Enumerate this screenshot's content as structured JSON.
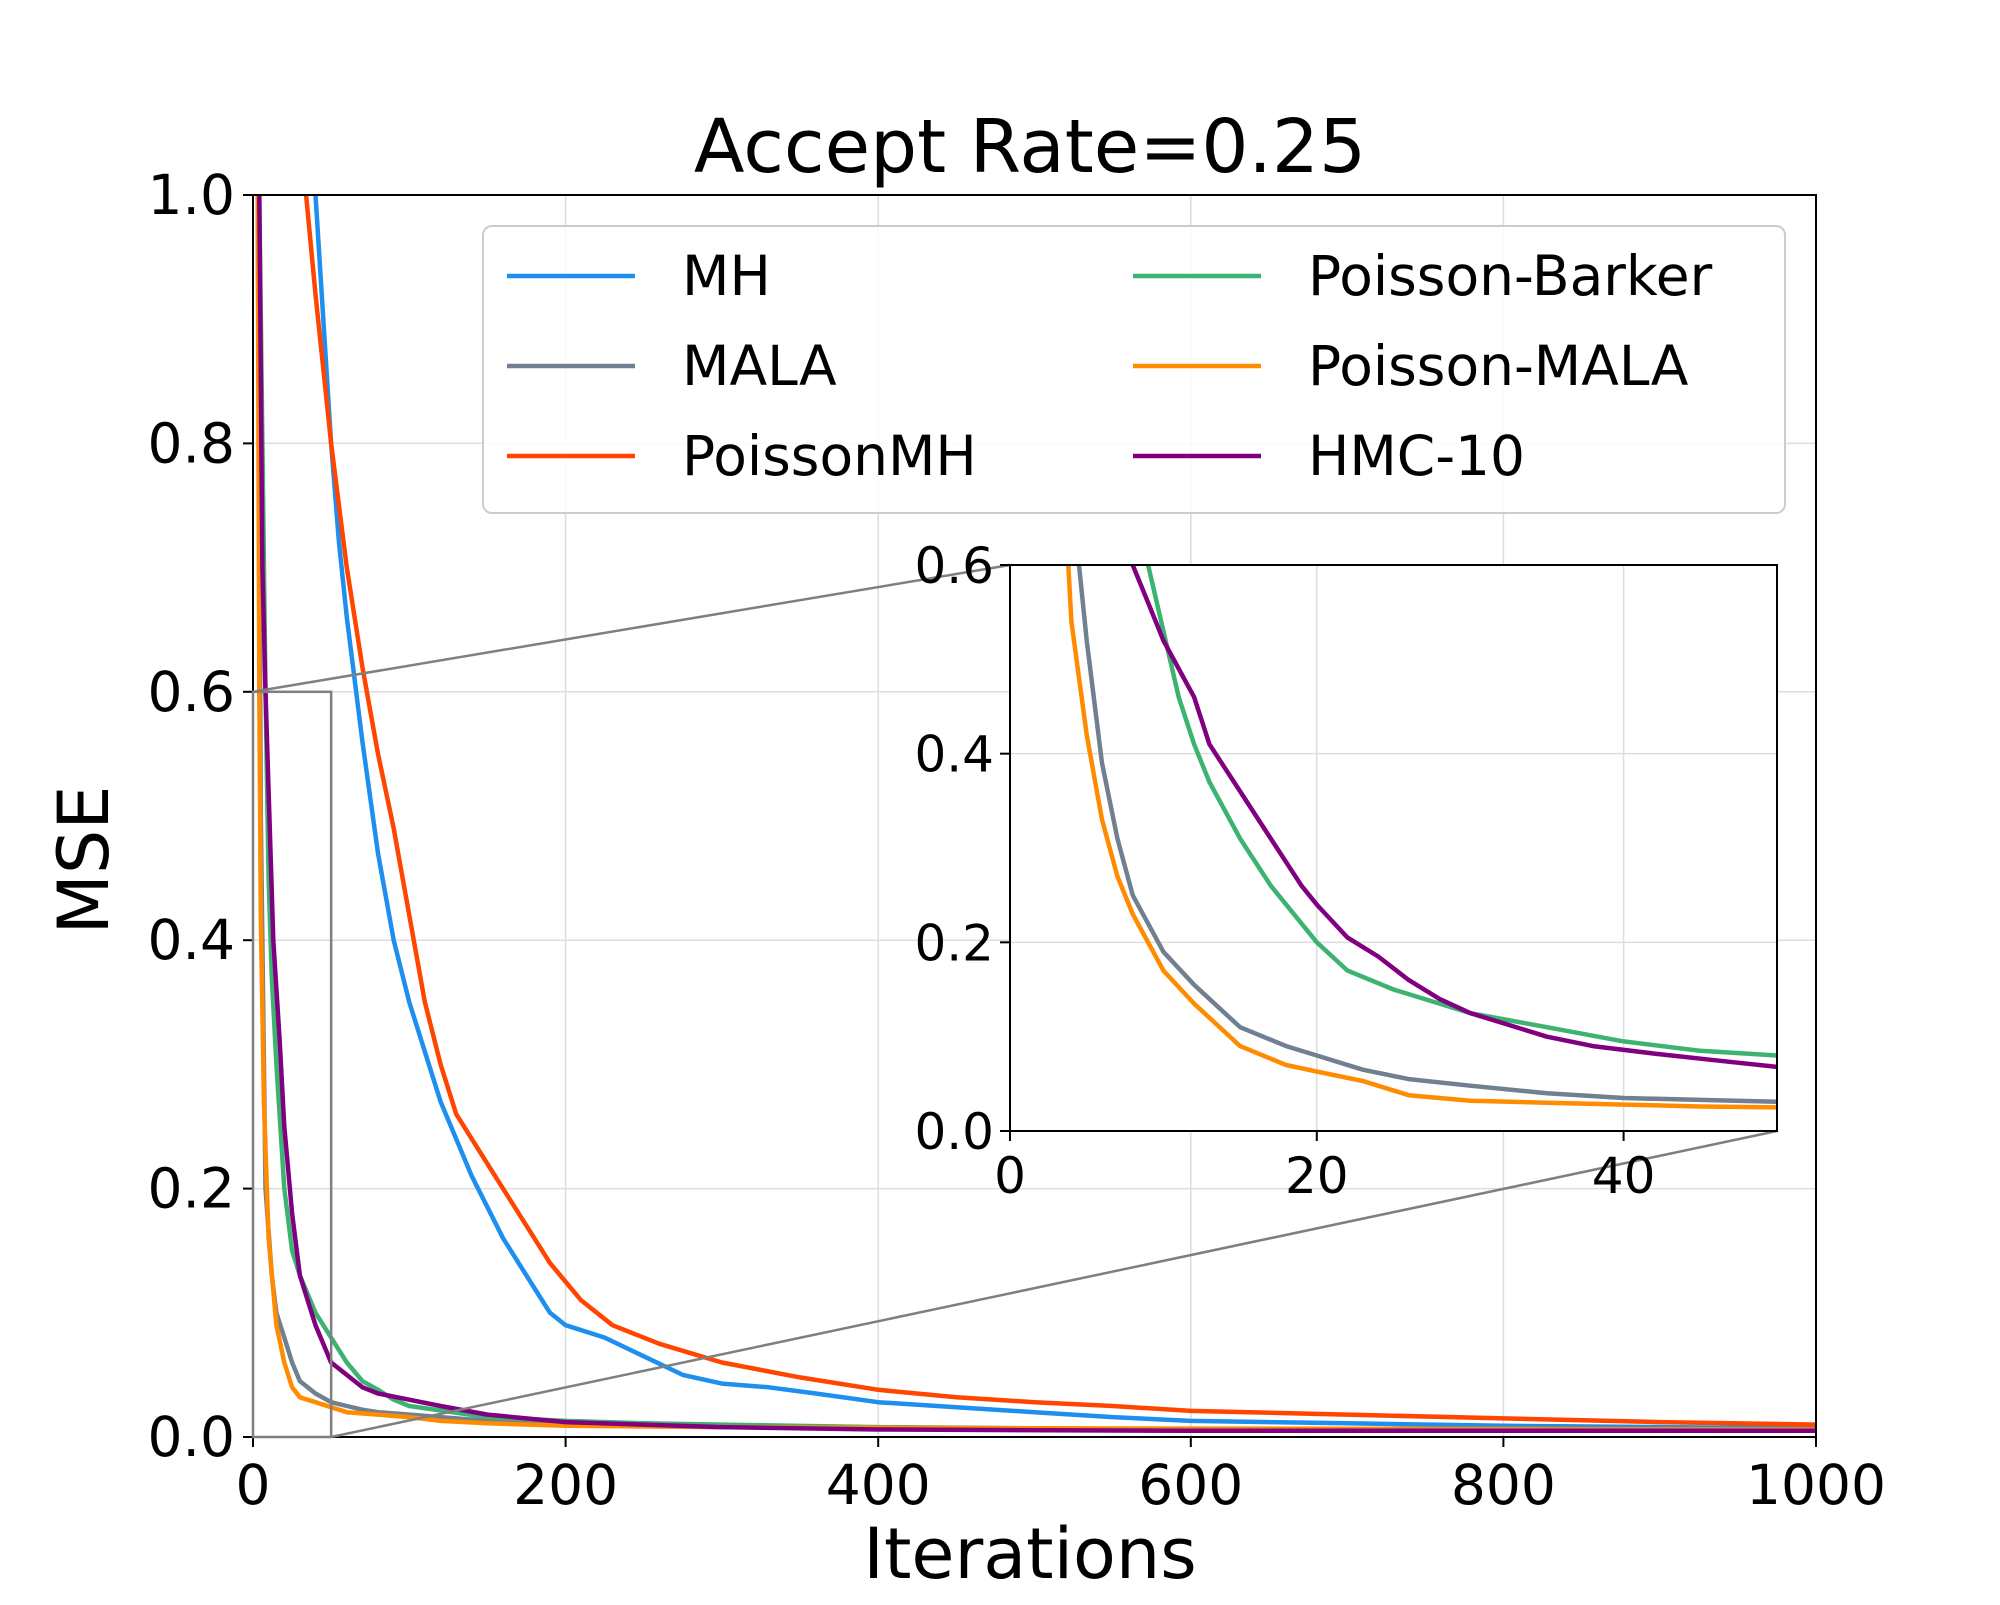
{
  "chart_data": {
    "type": "line",
    "title": "Accept Rate=0.25",
    "xlabel": "Iterations",
    "ylabel": "MSE",
    "xlim": [
      0,
      1000
    ],
    "ylim": [
      0,
      1.0
    ],
    "xticks": [
      "0",
      "200",
      "400",
      "600",
      "800",
      "1000"
    ],
    "yticks": [
      "0.0",
      "0.2",
      "0.4",
      "0.6",
      "0.8",
      "1.0"
    ],
    "grid": true,
    "legend": {
      "placement": "top-right",
      "columns": 2
    },
    "series": [
      {
        "name": "MH",
        "color": "#1f8fef",
        "points": [
          [
            40,
            1.0
          ],
          [
            45,
            0.9
          ],
          [
            50,
            0.8
          ],
          [
            55,
            0.72
          ],
          [
            60,
            0.66
          ],
          [
            70,
            0.56
          ],
          [
            80,
            0.47
          ],
          [
            90,
            0.4
          ],
          [
            100,
            0.35
          ],
          [
            120,
            0.27
          ],
          [
            140,
            0.21
          ],
          [
            160,
            0.16
          ],
          [
            180,
            0.12
          ],
          [
            190,
            0.1
          ],
          [
            200,
            0.09
          ],
          [
            225,
            0.08
          ],
          [
            250,
            0.065
          ],
          [
            275,
            0.05
          ],
          [
            300,
            0.043
          ],
          [
            330,
            0.04
          ],
          [
            360,
            0.035
          ],
          [
            400,
            0.028
          ],
          [
            450,
            0.024
          ],
          [
            500,
            0.02
          ],
          [
            550,
            0.016
          ],
          [
            600,
            0.013
          ],
          [
            700,
            0.011
          ],
          [
            800,
            0.009
          ],
          [
            900,
            0.008
          ],
          [
            1000,
            0.007
          ]
        ]
      },
      {
        "name": "MALA",
        "color": "#708090",
        "points": [
          [
            3,
            1.0
          ],
          [
            5,
            0.5
          ],
          [
            8,
            0.2
          ],
          [
            12,
            0.13
          ],
          [
            15,
            0.1
          ],
          [
            20,
            0.08
          ],
          [
            25,
            0.06
          ],
          [
            30,
            0.045
          ],
          [
            40,
            0.035
          ],
          [
            50,
            0.028
          ],
          [
            60,
            0.025
          ],
          [
            70,
            0.022
          ],
          [
            80,
            0.02
          ],
          [
            100,
            0.018
          ],
          [
            150,
            0.013
          ],
          [
            200,
            0.01
          ],
          [
            300,
            0.008
          ],
          [
            400,
            0.007
          ],
          [
            600,
            0.006
          ],
          [
            800,
            0.005
          ],
          [
            1000,
            0.005
          ]
        ]
      },
      {
        "name": "PoissonMH",
        "color": "#ff4500",
        "points": [
          [
            34,
            1.0
          ],
          [
            40,
            0.92
          ],
          [
            50,
            0.8
          ],
          [
            60,
            0.7
          ],
          [
            70,
            0.62
          ],
          [
            80,
            0.55
          ],
          [
            90,
            0.49
          ],
          [
            100,
            0.42
          ],
          [
            110,
            0.35
          ],
          [
            120,
            0.3
          ],
          [
            130,
            0.26
          ],
          [
            150,
            0.22
          ],
          [
            170,
            0.18
          ],
          [
            190,
            0.14
          ],
          [
            210,
            0.11
          ],
          [
            230,
            0.09
          ],
          [
            260,
            0.075
          ],
          [
            300,
            0.06
          ],
          [
            350,
            0.048
          ],
          [
            400,
            0.038
          ],
          [
            450,
            0.032
          ],
          [
            500,
            0.028
          ],
          [
            550,
            0.025
          ],
          [
            600,
            0.021
          ],
          [
            700,
            0.018
          ],
          [
            800,
            0.015
          ],
          [
            900,
            0.012
          ],
          [
            1000,
            0.01
          ]
        ]
      },
      {
        "name": "Poisson-Barker",
        "color": "#3cb371",
        "points": [
          [
            4,
            1.0
          ],
          [
            8,
            0.6
          ],
          [
            10,
            0.45
          ],
          [
            12,
            0.37
          ],
          [
            15,
            0.3
          ],
          [
            20,
            0.2
          ],
          [
            25,
            0.15
          ],
          [
            30,
            0.13
          ],
          [
            40,
            0.1
          ],
          [
            50,
            0.08
          ],
          [
            60,
            0.06
          ],
          [
            70,
            0.045
          ],
          [
            80,
            0.038
          ],
          [
            90,
            0.03
          ],
          [
            100,
            0.025
          ],
          [
            150,
            0.016
          ],
          [
            200,
            0.013
          ],
          [
            250,
            0.011
          ],
          [
            300,
            0.01
          ],
          [
            400,
            0.008
          ],
          [
            600,
            0.006
          ],
          [
            800,
            0.005
          ],
          [
            1000,
            0.005
          ]
        ]
      },
      {
        "name": "Poisson-MALA",
        "color": "#ff8c00",
        "points": [
          [
            3,
            1.0
          ],
          [
            4,
            0.6
          ],
          [
            5,
            0.42
          ],
          [
            7,
            0.27
          ],
          [
            10,
            0.16
          ],
          [
            15,
            0.09
          ],
          [
            20,
            0.06
          ],
          [
            25,
            0.04
          ],
          [
            30,
            0.032
          ],
          [
            40,
            0.028
          ],
          [
            50,
            0.024
          ],
          [
            60,
            0.02
          ],
          [
            80,
            0.018
          ],
          [
            100,
            0.016
          ],
          [
            120,
            0.013
          ],
          [
            150,
            0.011
          ],
          [
            200,
            0.009
          ],
          [
            300,
            0.008
          ],
          [
            500,
            0.007
          ],
          [
            1000,
            0.006
          ]
        ]
      },
      {
        "name": "HMC-10",
        "color": "#800080",
        "points": [
          [
            4,
            1.0
          ],
          [
            6,
            0.7
          ],
          [
            8,
            0.6
          ],
          [
            10,
            0.52
          ],
          [
            13,
            0.4
          ],
          [
            17,
            0.32
          ],
          [
            20,
            0.25
          ],
          [
            25,
            0.18
          ],
          [
            30,
            0.13
          ],
          [
            35,
            0.11
          ],
          [
            40,
            0.09
          ],
          [
            50,
            0.06
          ],
          [
            60,
            0.05
          ],
          [
            70,
            0.04
          ],
          [
            80,
            0.035
          ],
          [
            100,
            0.03
          ],
          [
            120,
            0.025
          ],
          [
            150,
            0.018
          ],
          [
            200,
            0.012
          ],
          [
            300,
            0.008
          ],
          [
            400,
            0.006
          ],
          [
            600,
            0.005
          ],
          [
            800,
            0.005
          ],
          [
            1000,
            0.005
          ]
        ]
      }
    ],
    "inset": {
      "xlim": [
        0,
        50
      ],
      "ylim": [
        0,
        0.6
      ],
      "xticks": [
        "0",
        "20",
        "40"
      ],
      "yticks": [
        "0.0",
        "0.2",
        "0.4",
        "0.6"
      ],
      "zoom_region": {
        "x": [
          0,
          50
        ],
        "y": [
          0,
          0.6
        ]
      },
      "series": [
        {
          "name": "MALA",
          "color": "#708090",
          "points": [
            [
              4.5,
              0.6
            ],
            [
              5,
              0.52
            ],
            [
              6,
              0.39
            ],
            [
              7,
              0.31
            ],
            [
              8,
              0.25
            ],
            [
              10,
              0.19
            ],
            [
              12,
              0.155
            ],
            [
              15,
              0.11
            ],
            [
              18,
              0.09
            ],
            [
              20,
              0.08
            ],
            [
              23,
              0.065
            ],
            [
              26,
              0.055
            ],
            [
              30,
              0.048
            ],
            [
              35,
              0.04
            ],
            [
              40,
              0.035
            ],
            [
              45,
              0.033
            ],
            [
              50,
              0.031
            ]
          ]
        },
        {
          "name": "Poisson-MALA",
          "color": "#ff8c00",
          "points": [
            [
              3.8,
              0.6
            ],
            [
              4,
              0.54
            ],
            [
              5,
              0.42
            ],
            [
              6,
              0.33
            ],
            [
              7,
              0.27
            ],
            [
              8,
              0.23
            ],
            [
              10,
              0.17
            ],
            [
              12,
              0.135
            ],
            [
              15,
              0.09
            ],
            [
              18,
              0.07
            ],
            [
              20,
              0.063
            ],
            [
              23,
              0.053
            ],
            [
              26,
              0.038
            ],
            [
              30,
              0.032
            ],
            [
              35,
              0.03
            ],
            [
              40,
              0.028
            ],
            [
              45,
              0.026
            ],
            [
              50,
              0.025
            ]
          ]
        },
        {
          "name": "Poisson-Barker",
          "color": "#3cb371",
          "points": [
            [
              9,
              0.6
            ],
            [
              10,
              0.53
            ],
            [
              11,
              0.46
            ],
            [
              12,
              0.41
            ],
            [
              13,
              0.37
            ],
            [
              15,
              0.31
            ],
            [
              17,
              0.26
            ],
            [
              20,
              0.2
            ],
            [
              22,
              0.17
            ],
            [
              25,
              0.15
            ],
            [
              28,
              0.135
            ],
            [
              30,
              0.125
            ],
            [
              35,
              0.11
            ],
            [
              40,
              0.095
            ],
            [
              45,
              0.085
            ],
            [
              50,
              0.08
            ]
          ]
        },
        {
          "name": "HMC-10",
          "color": "#800080",
          "points": [
            [
              8,
              0.6
            ],
            [
              9,
              0.56
            ],
            [
              10,
              0.52
            ],
            [
              12,
              0.46
            ],
            [
              13,
              0.41
            ],
            [
              15,
              0.36
            ],
            [
              17,
              0.31
            ],
            [
              19,
              0.26
            ],
            [
              20,
              0.24
            ],
            [
              22,
              0.205
            ],
            [
              24,
              0.185
            ],
            [
              26,
              0.16
            ],
            [
              28,
              0.14
            ],
            [
              30,
              0.125
            ],
            [
              32,
              0.115
            ],
            [
              35,
              0.1
            ],
            [
              38,
              0.09
            ],
            [
              42,
              0.082
            ],
            [
              46,
              0.075
            ],
            [
              50,
              0.068
            ]
          ]
        }
      ]
    }
  }
}
